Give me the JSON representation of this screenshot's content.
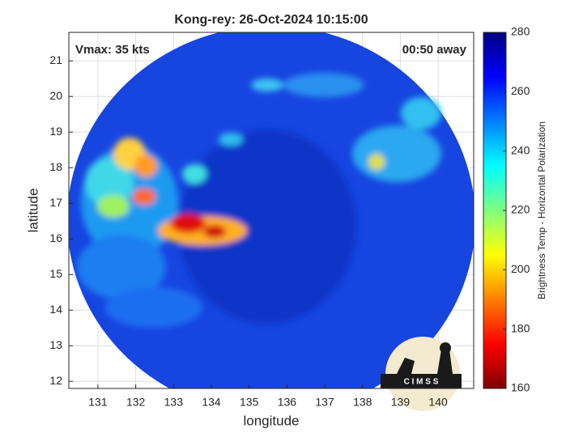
{
  "chart_data": {
    "type": "image",
    "title": "Kong-rey: 26-Oct-2024 10:15:00",
    "xlabel": "longitude",
    "ylabel": "latitude",
    "xlim": [
      130.23,
      140.94
    ],
    "xticks": [
      131,
      132,
      133,
      134,
      135,
      136,
      137,
      138,
      139,
      140
    ],
    "ylim": [
      11.8,
      21.8
    ],
    "yticks": [
      12,
      13,
      14,
      15,
      16,
      17,
      18,
      19,
      20,
      21
    ],
    "grid": true,
    "annotations": [
      "Vmax: 35 kts",
      "00:50 away"
    ],
    "logo": "C I M S S",
    "colorbar": {
      "label": "Brightness Temp - Horizontal Polarization",
      "lim": [
        160,
        280
      ],
      "ticks": [
        160,
        180,
        200,
        220,
        240,
        260,
        280
      ]
    }
  }
}
